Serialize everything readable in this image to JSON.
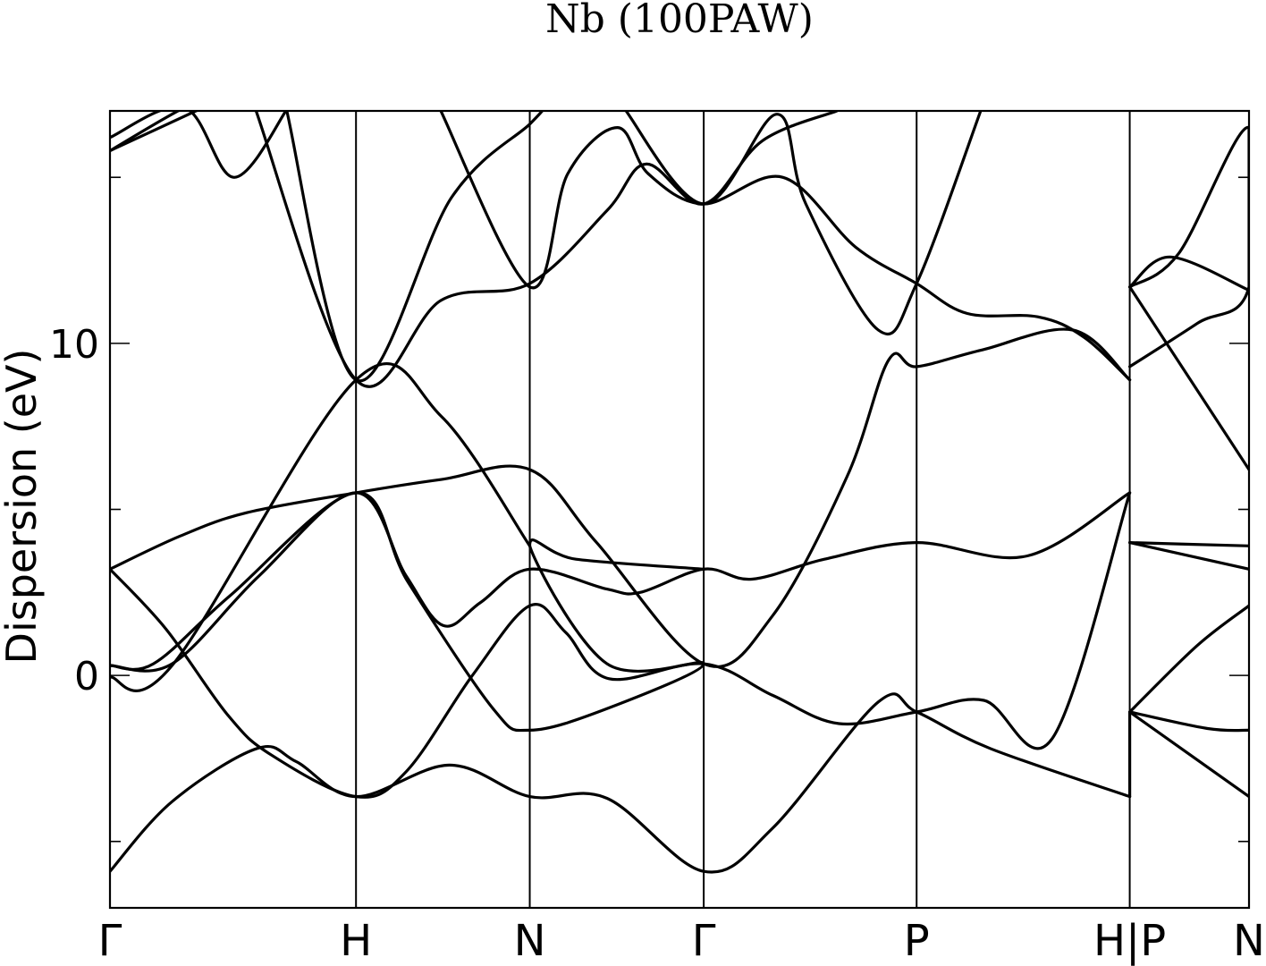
{
  "chart_data": {
    "type": "line",
    "title": "Nb (100PAW)",
    "ylabel": "Dispersion (eV)",
    "xlabel": "",
    "ylim": [
      -7,
      17
    ],
    "y_major_ticks": [
      0,
      10
    ],
    "y_minor_ticks": [
      -5,
      5,
      15
    ],
    "xlim": [
      0,
      5.5
    ],
    "high_symmetry_points": [
      {
        "label": "Γ",
        "x": 0
      },
      {
        "label": "H",
        "x": 1.188
      },
      {
        "label": "N",
        "x": 2.027
      },
      {
        "label": "Γ",
        "x": 2.867
      },
      {
        "label": "P",
        "x": 3.895
      },
      {
        "label": "H|P",
        "x": 4.924
      },
      {
        "label": "N",
        "x": 5.5
      }
    ],
    "series": [
      {
        "points": [
          [
            0,
            -5.9
          ],
          [
            0.3,
            -3.8
          ],
          [
            0.71,
            -2.2
          ],
          [
            0.9,
            -2.6
          ],
          [
            1.188,
            -3.65
          ],
          [
            1.64,
            -2.7
          ],
          [
            2.027,
            -3.65
          ],
          [
            2.4,
            -3.7
          ],
          [
            2.867,
            -5.9
          ],
          [
            3.2,
            -4.6
          ],
          [
            3.71,
            -0.8
          ],
          [
            3.895,
            -1.1
          ],
          [
            4.25,
            -2.2
          ],
          [
            4.924,
            -3.65
          ]
        ]
      },
      {
        "points": [
          [
            0,
            3.2
          ],
          [
            0.27,
            1.4
          ],
          [
            0.57,
            -1.2
          ],
          [
            0.78,
            -2.4
          ],
          [
            1.188,
            -3.65
          ],
          [
            1.43,
            -2.9
          ],
          [
            1.75,
            0.0
          ],
          [
            2.027,
            2.1
          ],
          [
            2.2,
            1.3
          ],
          [
            2.41,
            -0.1
          ],
          [
            2.867,
            0.35
          ],
          [
            3.2,
            -0.6
          ],
          [
            3.52,
            -1.45
          ],
          [
            3.895,
            -1.1
          ],
          [
            4.22,
            -0.75
          ],
          [
            4.55,
            -1.9
          ],
          [
            4.924,
            5.5
          ]
        ]
      },
      {
        "points": [
          [
            0,
            3.2
          ],
          [
            0.34,
            4.2
          ],
          [
            0.66,
            4.9
          ],
          [
            1.188,
            5.5
          ],
          [
            1.6,
            5.9
          ],
          [
            2.027,
            6.2
          ],
          [
            2.35,
            4.0
          ],
          [
            2.867,
            0.35
          ],
          [
            3.2,
            1.8
          ],
          [
            3.56,
            6.0
          ],
          [
            3.76,
            9.5
          ],
          [
            3.895,
            9.3
          ],
          [
            4.21,
            9.8
          ],
          [
            4.65,
            10.4
          ],
          [
            4.924,
            8.9
          ]
        ]
      },
      {
        "points": [
          [
            0,
            0.3
          ],
          [
            0.3,
            0.35
          ],
          [
            0.72,
            3.0
          ],
          [
            1.188,
            5.5
          ],
          [
            1.43,
            3.0
          ],
          [
            1.61,
            1.5
          ],
          [
            1.79,
            2.2
          ],
          [
            2.027,
            3.2
          ],
          [
            2.4,
            2.6
          ],
          [
            2.56,
            2.5
          ],
          [
            2.867,
            3.2
          ],
          [
            3.1,
            2.9
          ],
          [
            3.45,
            3.5
          ],
          [
            3.895,
            4.0
          ],
          [
            4.43,
            3.6
          ],
          [
            4.924,
            5.5
          ]
        ]
      },
      {
        "points": [
          [
            0,
            0.3
          ],
          [
            0.21,
            0.35
          ],
          [
            0.58,
            2.4
          ],
          [
            1.188,
            5.5
          ],
          [
            1.44,
            2.8
          ],
          [
            1.85,
            -1.0
          ],
          [
            2.027,
            -1.65
          ],
          [
            2.4,
            -1.0
          ],
          [
            2.867,
            0.35
          ],
          [
            2.4,
            0.35
          ],
          [
            2.027,
            3.9
          ],
          [
            2.25,
            3.5
          ],
          [
            2.867,
            3.2
          ]
        ]
      },
      {
        "points": [
          [
            0,
            -0.05
          ],
          [
            0.3,
            0.3
          ],
          [
            1.188,
            8.9
          ],
          [
            1.6,
            7.8
          ],
          [
            2.027,
            3.9
          ]
        ]
      },
      {
        "points": [
          [
            0,
            16.2
          ],
          [
            0.36,
            17.1
          ],
          [
            0.6,
            15.0
          ],
          [
            0.86,
            17.1
          ]
        ]
      },
      {
        "points": [
          [
            0,
            15.8
          ],
          [
            0.36,
            17.1
          ],
          [
            0.45,
            17.1
          ]
        ]
      },
      {
        "points": [
          [
            0,
            15.8
          ],
          [
            0.45,
            17.1
          ]
        ]
      },
      {
        "points": [
          [
            0.7,
            17.1
          ],
          [
            1.188,
            8.9
          ],
          [
            1.6,
            11.3
          ],
          [
            2.027,
            11.8
          ],
          [
            2.4,
            14.0
          ],
          [
            2.59,
            15.4
          ],
          [
            2.867,
            14.2
          ],
          [
            3.15,
            16.1
          ],
          [
            3.51,
            17.0
          ]
        ]
      },
      {
        "points": [
          [
            0.85,
            17.1
          ],
          [
            1.188,
            8.9
          ],
          [
            1.65,
            14.4
          ],
          [
            2.027,
            16.6
          ],
          [
            2.1,
            17.1
          ]
        ]
      },
      {
        "points": [
          [
            1.59,
            17.1
          ],
          [
            2.027,
            11.7
          ],
          [
            2.21,
            15.1
          ],
          [
            2.45,
            16.5
          ],
          [
            2.6,
            15.1
          ],
          [
            2.867,
            14.2
          ],
          [
            3.25,
            15.0
          ],
          [
            3.6,
            12.9
          ],
          [
            3.895,
            11.8
          ],
          [
            4.14,
            10.9
          ],
          [
            4.48,
            10.8
          ],
          [
            4.7,
            10.2
          ],
          [
            4.924,
            8.9
          ]
        ]
      },
      {
        "points": [
          [
            2.48,
            17.1
          ],
          [
            2.867,
            14.2
          ],
          [
            3.22,
            16.9
          ],
          [
            3.36,
            14.2
          ],
          [
            3.71,
            10.4
          ],
          [
            3.895,
            11.8
          ],
          [
            4.21,
            17.1
          ]
        ]
      },
      {
        "points": [
          [
            4.924,
            11.7
          ],
          [
            5.12,
            12.6
          ],
          [
            5.5,
            11.6
          ]
        ]
      },
      {
        "points": [
          [
            4.924,
            11.7
          ],
          [
            5.5,
            6.2
          ]
        ]
      },
      {
        "points": [
          [
            4.924,
            9.3
          ],
          [
            5.25,
            10.6
          ],
          [
            5.5,
            11.7
          ],
          [
            5.5,
            16.5
          ],
          [
            5.16,
            12.7
          ],
          [
            4.924,
            11.7
          ]
        ]
      },
      {
        "points": [
          [
            4.924,
            4.0
          ],
          [
            5.5,
            3.9
          ]
        ]
      },
      {
        "points": [
          [
            4.924,
            4.0
          ],
          [
            5.5,
            3.2
          ]
        ]
      },
      {
        "points": [
          [
            4.924,
            -1.1
          ],
          [
            5.25,
            0.9
          ],
          [
            5.5,
            2.1
          ]
        ]
      },
      {
        "points": [
          [
            4.924,
            -1.1
          ],
          [
            5.3,
            -1.6
          ],
          [
            5.5,
            -1.65
          ]
        ]
      },
      {
        "points": [
          [
            4.924,
            -1.1
          ],
          [
            5.5,
            -3.65
          ]
        ]
      },
      {
        "points": [
          [
            4.924,
            -1.1
          ],
          [
            4.924,
            -3.65
          ]
        ]
      }
    ]
  }
}
